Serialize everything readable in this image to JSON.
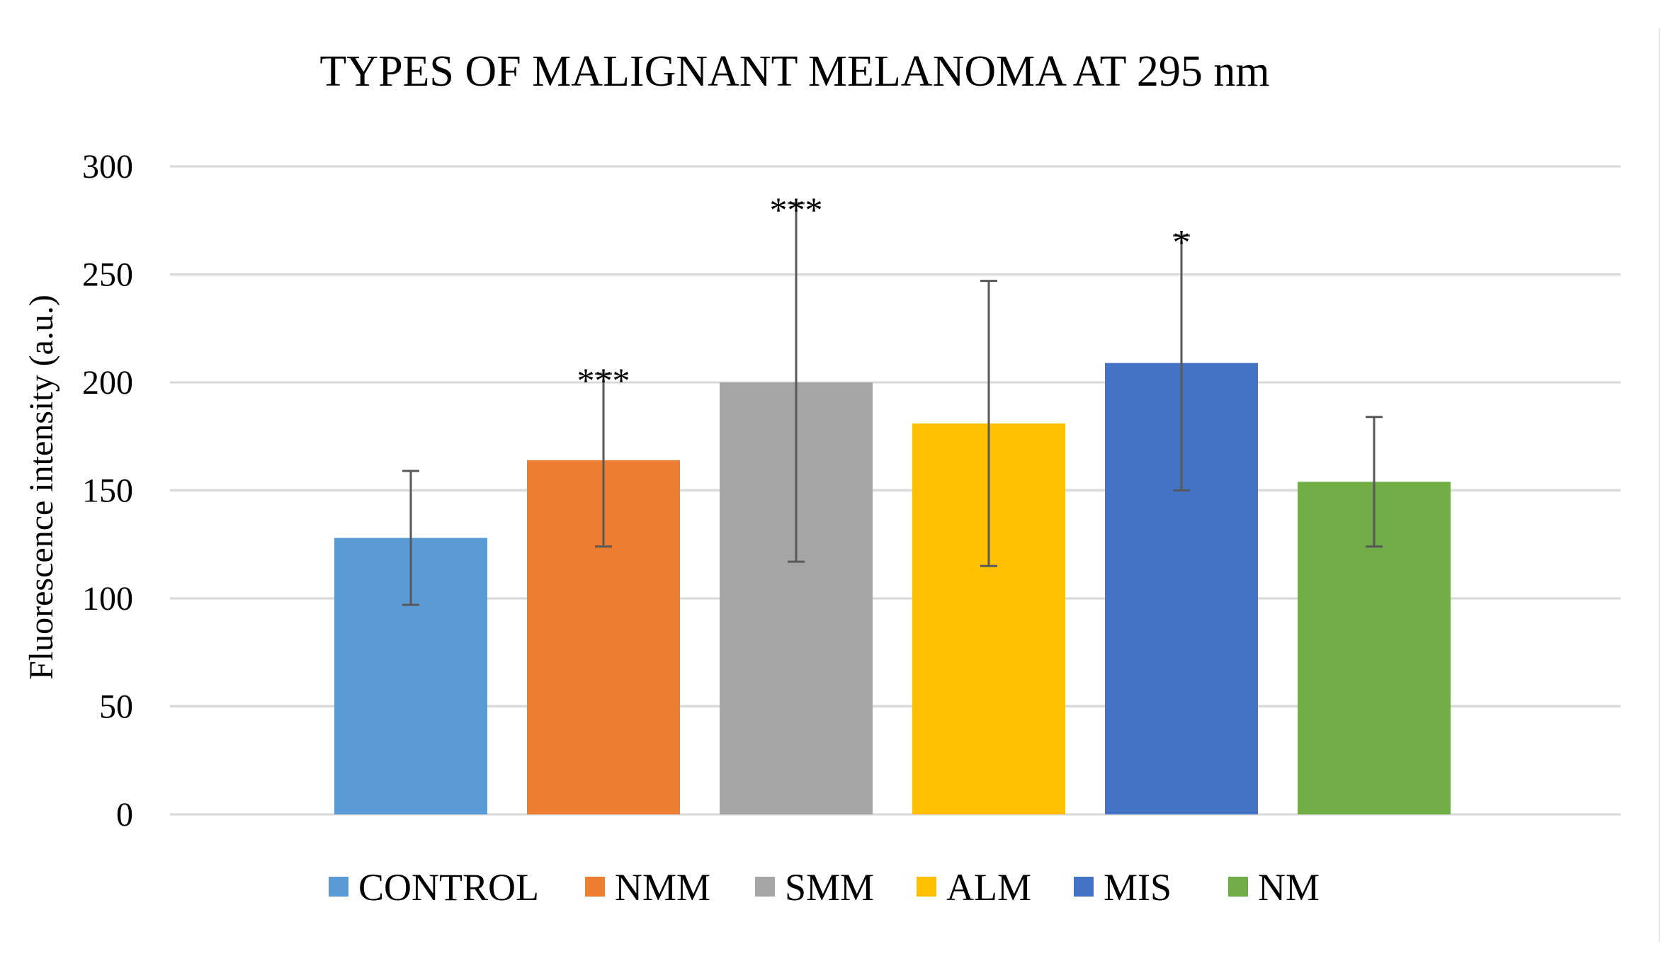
{
  "chart_data": {
    "type": "bar",
    "title": "TYPES OF MALIGNANT MELANOMA AT 295 nm",
    "xlabel": "",
    "ylabel": "Fluorescence intensity (a.u.)",
    "ylim": [
      0,
      300
    ],
    "yticks": [
      0,
      50,
      100,
      150,
      200,
      250,
      300
    ],
    "ytick_labels": [
      "0",
      "50",
      "100",
      "150",
      "200",
      "250",
      "300"
    ],
    "grid": true,
    "legend_position": "bottom",
    "categories": [
      "CONTROL",
      "NMM",
      "SMM",
      "ALM",
      "MIS",
      "NM"
    ],
    "values": [
      128,
      164,
      200,
      181,
      209,
      154
    ],
    "error": [
      31,
      40,
      83,
      66,
      59,
      30
    ],
    "annotations": [
      "",
      "***",
      "***",
      "",
      "*",
      ""
    ],
    "colors": [
      "#5b9bd5",
      "#ed7d31",
      "#a5a5a5",
      "#ffc000",
      "#4472c4",
      "#70ad47"
    ]
  }
}
